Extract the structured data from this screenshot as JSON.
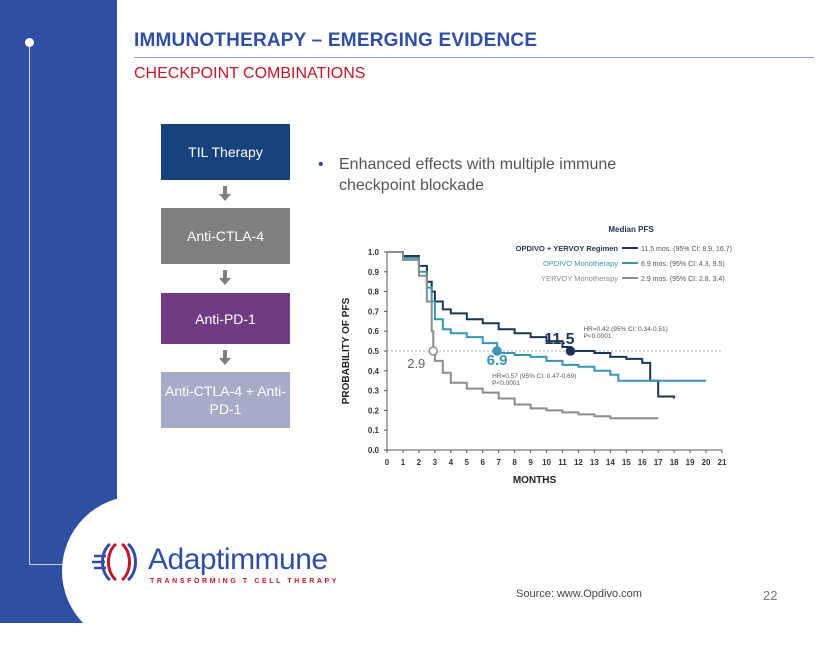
{
  "slide": {
    "title": "IMMUNOTHERAPY – EMERGING EVIDENCE",
    "subtitle": "CHECKPOINT COMBINATIONS",
    "page_number": "22",
    "source": "Source: www.Opdivo.com"
  },
  "flow": {
    "steps": [
      "TIL Therapy",
      "Anti-CTLA-4",
      "Anti-PD-1",
      "Anti-CTLA-4 + Anti-PD-1"
    ]
  },
  "bullets": [
    "Enhanced effects with multiple immune checkpoint blockade"
  ],
  "logo": {
    "name": "Adaptimmune",
    "tagline": "TRANSFORMING T CELL THERAPY"
  },
  "colors": {
    "sidebar": "#2f4fa2",
    "title": "#2f4fa2",
    "subtitle": "#c0182a",
    "combo": "#1c3557",
    "opdivo": "#3a95b5",
    "yervoy": "#8c8c8c"
  },
  "chart_data": {
    "type": "line",
    "xlabel": "MONTHS",
    "ylabel": "PROBABILITY OF PFS",
    "xlim": [
      0,
      21
    ],
    "ylim": [
      0,
      1.0
    ],
    "xticks": [
      0,
      1,
      2,
      3,
      4,
      5,
      6,
      7,
      8,
      9,
      10,
      11,
      12,
      13,
      14,
      15,
      16,
      17,
      18,
      19,
      20,
      21
    ],
    "yticks": [
      "0.0",
      "0.1",
      "0.2",
      "0.3",
      "0.4",
      "0.5",
      "0.6",
      "0.7",
      "0.8",
      "0.9",
      "1.0"
    ],
    "legend_title": "Median PFS",
    "legend": [
      {
        "name": "OPDIVO + YERVOY Regimen",
        "text": "11.5 mos. (95% CI: 8.9, 16.7)"
      },
      {
        "name": "OPDIVO Monotherapy",
        "text": "6.9 mos. (95% CI: 4.3, 9.5)"
      },
      {
        "name": "YERVOY Monotherapy",
        "text": "2.9 mos. (95% CI: 2.8, 3.4)"
      }
    ],
    "reference_line_y": 0.5,
    "series": [
      {
        "name": "OPDIVO + YERVOY Regimen",
        "x": [
          0,
          1,
          2,
          2.5,
          2.8,
          3,
          3.5,
          4,
          5,
          6,
          7,
          8,
          9,
          10,
          11,
          11.5,
          12,
          13,
          14,
          15,
          16,
          16.5,
          17,
          18
        ],
        "y": [
          1.0,
          0.98,
          0.93,
          0.85,
          0.8,
          0.75,
          0.71,
          0.69,
          0.66,
          0.64,
          0.61,
          0.59,
          0.57,
          0.55,
          0.52,
          0.5,
          0.5,
          0.49,
          0.47,
          0.46,
          0.44,
          0.35,
          0.27,
          0.26
        ]
      },
      {
        "name": "OPDIVO Monotherapy",
        "x": [
          0,
          1,
          2,
          2.5,
          2.8,
          3,
          3.5,
          4,
          5,
          6,
          6.9,
          7,
          8,
          9,
          10,
          11,
          12,
          13,
          14,
          14.5,
          15,
          16,
          17,
          20
        ],
        "y": [
          1.0,
          0.97,
          0.9,
          0.82,
          0.75,
          0.66,
          0.61,
          0.59,
          0.57,
          0.54,
          0.5,
          0.49,
          0.48,
          0.47,
          0.45,
          0.43,
          0.42,
          0.4,
          0.38,
          0.35,
          0.35,
          0.35,
          0.35,
          0.35
        ]
      },
      {
        "name": "YERVOY Monotherapy",
        "x": [
          0,
          1,
          2,
          2.5,
          2.8,
          2.9,
          3,
          3.5,
          4,
          5,
          6,
          7,
          8,
          9,
          10,
          11,
          12,
          13,
          14,
          15,
          16,
          17
        ],
        "y": [
          1.0,
          0.96,
          0.88,
          0.75,
          0.6,
          0.5,
          0.45,
          0.39,
          0.34,
          0.31,
          0.29,
          0.26,
          0.23,
          0.21,
          0.2,
          0.19,
          0.18,
          0.17,
          0.16,
          0.16,
          0.16,
          0.16
        ]
      }
    ],
    "annotations": [
      {
        "text": "11.5",
        "x": 11.5,
        "y": 0.5
      },
      {
        "text": "HR=0.42 (95% CI: 0.34-0.51)",
        "x": 11.5,
        "y": 0.5
      },
      {
        "text": "P<0.0001",
        "x": 11.5,
        "y": 0.5
      },
      {
        "text": "6.9",
        "x": 6.9,
        "y": 0.5
      },
      {
        "text": "HR=0.57 (95% CI: 0.47-0.69)",
        "x": 6.9,
        "y": 0.5
      },
      {
        "text": "P<0.0001",
        "x": 6.9,
        "y": 0.5
      },
      {
        "text": "2.9",
        "x": 2.9,
        "y": 0.5
      }
    ]
  }
}
